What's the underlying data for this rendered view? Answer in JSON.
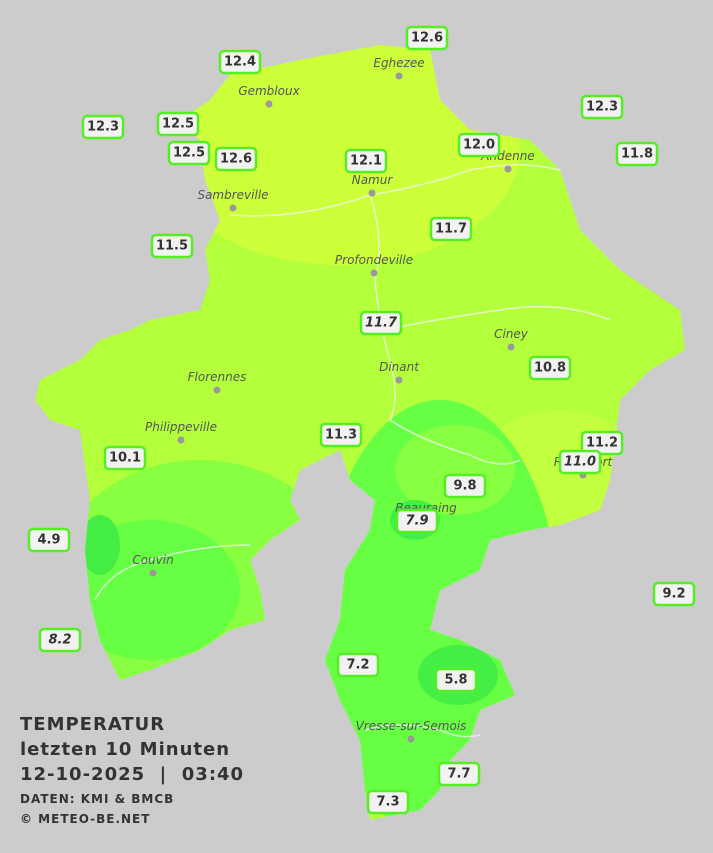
{
  "header": {
    "title": "TEMPERATUR",
    "period": "letzten 10 Minuten",
    "datetime": "12-10-2025  |  03:40",
    "source": "DATEN: KMI & BMCB",
    "copyright": "© METEO-BE.NET"
  },
  "cities": [
    "Eghezee",
    "Gembloux",
    "Andenne",
    "Namur",
    "Sambreville",
    "Profondeville",
    "Ciney",
    "Dinant",
    "Florennes",
    "Philippeville",
    "Rochefort",
    "Beauraing",
    "Couvin",
    "Vresse-sur-Semois"
  ],
  "stations": [
    "12.6",
    "12.4",
    "12.3",
    "12.5",
    "12.5",
    "12.6",
    "12.1",
    "12.0",
    "12.3",
    "11.8",
    "11.5",
    "11.7",
    "11.7",
    "10.8",
    "11.3",
    "10.1",
    "11.2",
    "11.0",
    "9.8",
    "7.9",
    "4.9",
    "9.2",
    "8.2",
    "7.2",
    "5.8",
    "7.7",
    "7.3"
  ]
}
